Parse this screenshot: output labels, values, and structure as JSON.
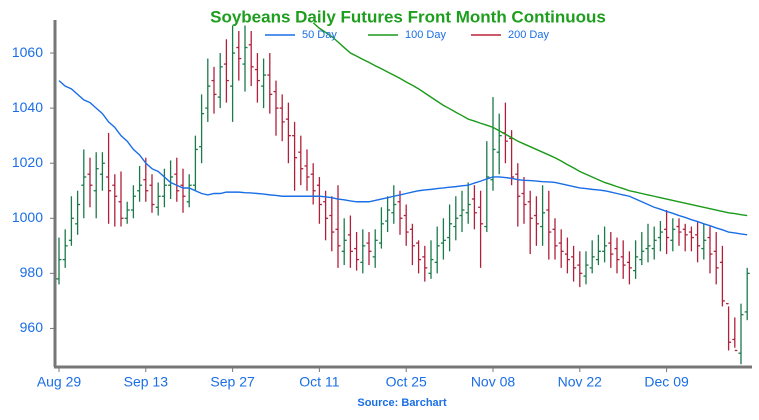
{
  "chart_data": {
    "type": "ohlc",
    "title": "Soybeans Daily Futures Front Month Continuous",
    "source": "Source: Barchart",
    "categories": [
      "Aug 29",
      null,
      null,
      null,
      null,
      null,
      null,
      null,
      null,
      null,
      null,
      null,
      null,
      null,
      "Sep 13",
      null,
      null,
      null,
      null,
      null,
      null,
      null,
      null,
      null,
      null,
      null,
      null,
      null,
      "Sep 27",
      null,
      null,
      null,
      null,
      null,
      null,
      null,
      null,
      null,
      null,
      null,
      null,
      null,
      "Oct 11",
      null,
      null,
      null,
      null,
      null,
      null,
      null,
      null,
      null,
      null,
      null,
      null,
      null,
      "Oct 25",
      null,
      null,
      null,
      null,
      null,
      null,
      null,
      null,
      null,
      null,
      null,
      null,
      null,
      "Nov 08",
      null,
      null,
      null,
      null,
      null,
      null,
      null,
      null,
      null,
      null,
      null,
      null,
      null,
      "Nov 22",
      null,
      null,
      null,
      null,
      null,
      null,
      null,
      null,
      null,
      null,
      null,
      null,
      null,
      "Dec 09",
      null,
      null,
      null,
      null,
      null,
      null,
      null,
      null,
      null,
      null,
      null,
      null,
      null
    ],
    "open": [
      978,
      985,
      992,
      998,
      1012,
      1016,
      1010,
      1016,
      1015,
      1012,
      1006,
      1000,
      1003,
      1010,
      1014,
      1012,
      1004,
      1008,
      1012,
      1016,
      1012,
      1006,
      1012,
      1026,
      1040,
      1050,
      1044,
      1056,
      1048,
      1062,
      1056,
      1063,
      1054,
      1048,
      1052,
      1046,
      1040,
      1036,
      1030,
      1024,
      1019,
      1016,
      1012,
      1006,
      1001,
      996,
      988,
      994,
      989,
      984,
      991,
      986,
      991,
      999,
      1002,
      1006,
      1001,
      996,
      991,
      986,
      980,
      984,
      991,
      993,
      997,
      1001,
      1002,
      1007,
      1004,
      997,
      1014,
      1024,
      1031,
      1029,
      1016,
      1009,
      1006,
      1001,
      997,
      1003,
      996,
      991,
      987,
      986,
      983,
      979,
      982,
      985,
      988,
      991,
      989,
      986,
      984,
      981,
      985,
      989,
      989,
      993,
      996,
      992,
      997,
      996,
      995,
      994,
      989,
      993,
      988,
      984,
      969,
      956,
      951,
      966
    ],
    "high": [
      993,
      996,
      1008,
      1010,
      1025,
      1022,
      1024,
      1024,
      1031,
      1016,
      1017,
      1006,
      1012,
      1019,
      1022,
      1016,
      1013,
      1018,
      1021,
      1022,
      1018,
      1016,
      1030,
      1045,
      1058,
      1055,
      1060,
      1065,
      1070,
      1068,
      1070,
      1068,
      1060,
      1058,
      1060,
      1050,
      1045,
      1042,
      1035,
      1030,
      1025,
      1020,
      1015,
      1010,
      1008,
      1012,
      1000,
      1001,
      995,
      996,
      995,
      996,
      1004,
      1008,
      1012,
      1010,
      1005,
      998,
      992,
      990,
      992,
      997,
      1000,
      1005,
      1008,
      1010,
      1013,
      1012,
      1010,
      1028,
      1044,
      1038,
      1042,
      1032,
      1020,
      1015,
      1010,
      1008,
      1012,
      1010,
      1000,
      996,
      993,
      990,
      988,
      988,
      992,
      994,
      997,
      995,
      993,
      992,
      988,
      992,
      995,
      998,
      997,
      999,
      1003,
      1000,
      1000,
      998,
      997,
      999,
      998,
      997,
      995,
      990,
      968,
      964,
      969,
      982
    ],
    "low": [
      976,
      982,
      990,
      994,
      1000,
      1004,
      1000,
      1010,
      998,
      997,
      997,
      998,
      1000,
      1006,
      1006,
      1002,
      1001,
      1004,
      1007,
      1006,
      1002,
      1004,
      1010,
      1020,
      1035,
      1038,
      1040,
      1042,
      1035,
      1050,
      1046,
      1048,
      1042,
      1040,
      1038,
      1030,
      1028,
      1020,
      1010,
      1012,
      1010,
      1005,
      998,
      992,
      988,
      982,
      983,
      982,
      981,
      980,
      983,
      982,
      989,
      995,
      998,
      994,
      990,
      983,
      980,
      977,
      978,
      980,
      985,
      988,
      992,
      995,
      998,
      996,
      982,
      995,
      1010,
      1016,
      1020,
      1012,
      997,
      998,
      987,
      990,
      990,
      985,
      985,
      982,
      980,
      977,
      975,
      976,
      980,
      983,
      984,
      982,
      980,
      978,
      976,
      978,
      983,
      984,
      985,
      988,
      987,
      988,
      990,
      988,
      988,
      984,
      985,
      980,
      976,
      968,
      952,
      953,
      947,
      963
    ],
    "close": [
      985,
      990,
      1000,
      1005,
      1015,
      1012,
      1018,
      1020,
      1010,
      1008,
      1000,
      1003,
      1008,
      1012,
      1010,
      1005,
      1008,
      1012,
      1015,
      1010,
      1008,
      1012,
      1025,
      1038,
      1048,
      1045,
      1055,
      1050,
      1060,
      1058,
      1062,
      1055,
      1050,
      1052,
      1045,
      1040,
      1035,
      1030,
      1022,
      1018,
      1015,
      1010,
      1005,
      1000,
      995,
      990,
      992,
      988,
      985,
      990,
      988,
      992,
      998,
      1003,
      1005,
      1000,
      995,
      990,
      985,
      982,
      985,
      990,
      992,
      998,
      1000,
      1003,
      1005,
      1002,
      998,
      1015,
      1025,
      1030,
      1028,
      1015,
      1008,
      1005,
      1000,
      998,
      1002,
      995,
      990,
      988,
      985,
      982,
      980,
      983,
      986,
      988,
      990,
      987,
      985,
      983,
      982,
      986,
      988,
      990,
      992,
      995,
      993,
      996,
      995,
      994,
      993,
      990,
      992,
      987,
      982,
      970,
      955,
      952,
      965,
      980
    ],
    "up_color": "#1b7a4a",
    "down_color": "#b0203a",
    "series": [
      {
        "name": "50 Day",
        "color": "#1a6ee6",
        "values": [
          1050,
          1048,
          1047,
          1045,
          1043,
          1042,
          1040,
          1038,
          1035,
          1033,
          1030,
          1028,
          1025,
          1023,
          1020,
          1018,
          1017,
          1015,
          1013,
          1012,
          1011,
          1011,
          1010,
          1009,
          1008.5,
          1009,
          1009,
          1009.5,
          1009.5,
          1009.5,
          1009.3,
          1009.2,
          1009,
          1008.8,
          1008.5,
          1008.3,
          1008,
          1008,
          1008,
          1008,
          1008,
          1008,
          1008,
          1007.8,
          1007.5,
          1007,
          1006.7,
          1006.3,
          1006,
          1006,
          1006,
          1006.5,
          1007,
          1007.5,
          1008,
          1008.5,
          1009,
          1009.5,
          1010,
          1010.3,
          1010.5,
          1010.8,
          1011,
          1011.3,
          1011.5,
          1011.8,
          1012,
          1012.8,
          1013.5,
          1014.3,
          1015,
          1015,
          1014.8,
          1014.5,
          1014,
          1013.8,
          1013.7,
          1013.5,
          1013.3,
          1013.2,
          1013,
          1012.5,
          1012,
          1011.5,
          1011,
          1010.8,
          1010.5,
          1010.3,
          1010,
          1009.5,
          1009,
          1008.5,
          1008,
          1007,
          1006,
          1005,
          1004,
          1003.3,
          1002.5,
          1001.8,
          1001,
          1000.3,
          999.5,
          998.8,
          998,
          997.3,
          996.5,
          995.8,
          995,
          994.7,
          994.3,
          994
        ]
      },
      {
        "name": "100 Day",
        "color": "#1a9a1a",
        "values": [
          null,
          null,
          null,
          null,
          null,
          null,
          null,
          null,
          null,
          null,
          null,
          null,
          null,
          null,
          null,
          null,
          null,
          null,
          null,
          null,
          null,
          null,
          null,
          null,
          null,
          null,
          null,
          null,
          null,
          null,
          null,
          null,
          null,
          null,
          null,
          null,
          null,
          null,
          null,
          null,
          null,
          1071,
          1069,
          1067.5,
          1066,
          1064,
          1062,
          1060,
          1058.9,
          1057.7,
          1056.6,
          1055.4,
          1054.3,
          1053.1,
          1052,
          1050.8,
          1049.5,
          1048.3,
          1047,
          1045.5,
          1044,
          1042.5,
          1041,
          1039.8,
          1038.5,
          1037.3,
          1036,
          1035.3,
          1034.5,
          1033.8,
          1033,
          1031.8,
          1030.5,
          1029.3,
          1028,
          1027,
          1026,
          1025,
          1024,
          1023,
          1022,
          1020.8,
          1019.5,
          1018.3,
          1017,
          1016,
          1015,
          1014,
          1013,
          1012.3,
          1011.5,
          1010.8,
          1010,
          1009.5,
          1009,
          1008.5,
          1008,
          1007.5,
          1007,
          1006.5,
          1006,
          1005.5,
          1005,
          1004.5,
          1004,
          1003.5,
          1003,
          1002.5,
          1002,
          1001.7,
          1001.3,
          1001
        ]
      },
      {
        "name": "200 Day",
        "color": "#c0203a",
        "values": [
          null,
          null,
          null,
          null,
          null,
          null,
          null,
          null,
          null,
          null,
          null,
          null,
          null,
          null,
          null,
          null,
          null,
          null,
          null,
          null,
          null,
          null,
          null,
          null,
          null,
          null,
          null,
          null,
          null,
          null,
          null,
          null,
          null,
          null,
          null,
          null,
          null,
          null,
          null,
          null,
          null,
          null,
          null,
          null,
          null,
          null,
          null,
          null,
          null,
          null,
          null,
          null,
          null,
          null,
          null,
          null,
          null,
          null,
          null,
          null,
          null,
          null,
          null,
          null,
          null,
          null,
          null,
          null,
          null,
          null,
          null,
          null,
          null,
          null,
          null,
          null,
          null,
          null,
          null,
          null,
          null,
          null,
          null,
          null,
          null,
          null,
          null,
          null,
          null,
          null,
          null,
          null,
          null,
          null,
          null,
          null,
          null,
          null,
          null,
          null,
          null,
          null,
          null,
          null,
          null,
          null,
          null,
          null,
          null,
          null,
          null,
          null
        ]
      }
    ],
    "ylim": [
      946,
      1072
    ],
    "yticks": [
      960,
      980,
      1000,
      1020,
      1040,
      1060
    ]
  }
}
